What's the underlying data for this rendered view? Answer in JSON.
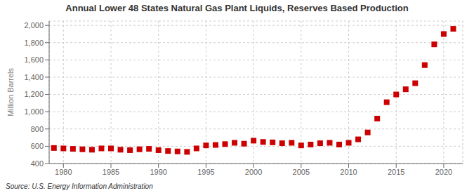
{
  "chart_data": {
    "type": "scatter",
    "title": "Annual Lower 48 States Natural Gas Plant Liquids, Reserves Based Production",
    "ylabel": "Million Barrels",
    "annotation": "Source: U.S. Energy Information Administration",
    "color": "#cc0000",
    "marker": "square",
    "grid": true,
    "xlim": [
      1978.5,
      2022
    ],
    "ylim": [
      400,
      2050
    ],
    "xticks": [
      1980,
      1985,
      1990,
      1995,
      2000,
      2005,
      2010,
      2015,
      2020
    ],
    "yticks": [
      400,
      600,
      800,
      {
        "value": 1000,
        "label": "1,000"
      },
      {
        "value": 1200,
        "label": "1,200"
      },
      {
        "value": 1400,
        "label": "1,400"
      },
      {
        "value": 1600,
        "label": "1,600"
      },
      {
        "value": 1800,
        "label": "1,800"
      },
      {
        "value": 2000,
        "label": "2,000"
      }
    ],
    "x": [
      1979,
      1980,
      1981,
      1982,
      1983,
      1984,
      1985,
      1986,
      1987,
      1988,
      1989,
      1990,
      1991,
      1992,
      1993,
      1994,
      1995,
      1996,
      1997,
      1998,
      1999,
      2000,
      2001,
      2002,
      2003,
      2004,
      2005,
      2006,
      2007,
      2008,
      2009,
      2010,
      2011,
      2012,
      2013,
      2014,
      2015,
      2016,
      2017,
      2018,
      2019,
      2020,
      2021
    ],
    "values": [
      580,
      575,
      570,
      565,
      560,
      575,
      575,
      560,
      555,
      565,
      570,
      555,
      545,
      540,
      535,
      575,
      610,
      615,
      625,
      640,
      630,
      665,
      650,
      645,
      635,
      640,
      610,
      620,
      635,
      640,
      620,
      640,
      680,
      760,
      920,
      1110,
      1200,
      1260,
      1330,
      1540,
      1780,
      1900,
      1960
    ]
  }
}
